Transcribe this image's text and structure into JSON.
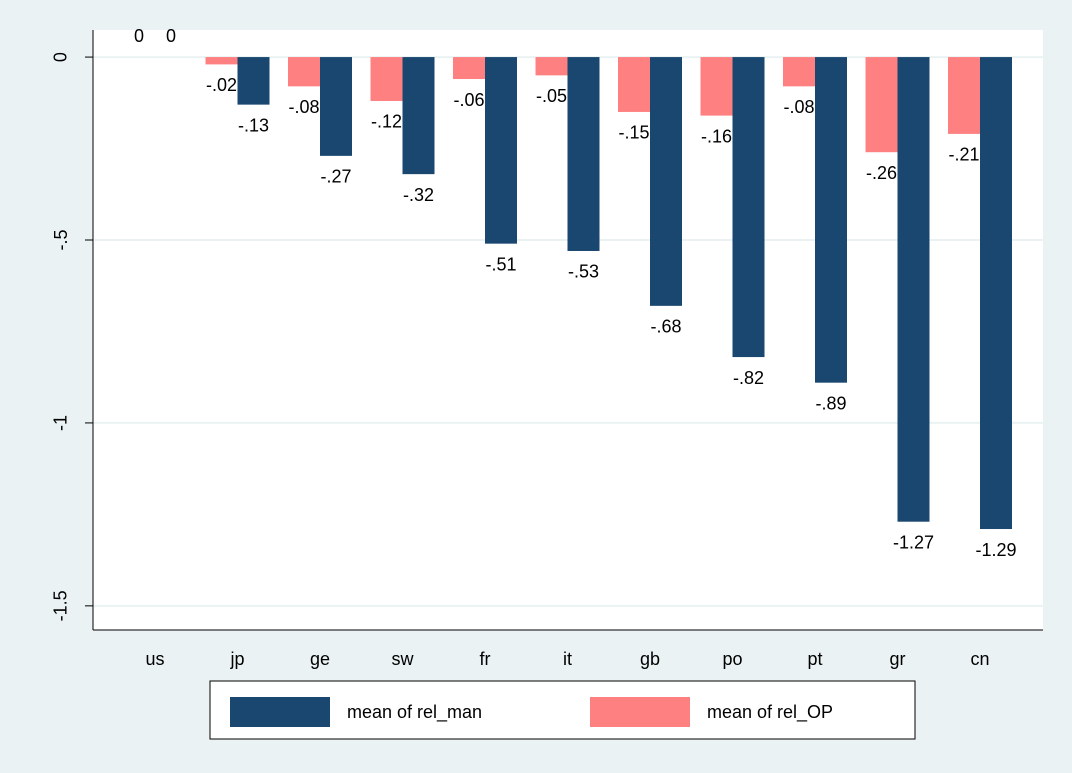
{
  "chart_data": {
    "type": "bar",
    "categories": [
      "us",
      "jp",
      "ge",
      "sw",
      "fr",
      "it",
      "gb",
      "po",
      "pt",
      "gr",
      "cn"
    ],
    "series": [
      {
        "name": "mean of rel_man",
        "color": "#1a476f",
        "values": [
          0,
          -0.13,
          -0.27,
          -0.32,
          -0.51,
          -0.53,
          -0.68,
          -0.82,
          -0.89,
          -1.27,
          -1.29
        ],
        "value_labels": [
          "0",
          "-.13",
          "-.27",
          "-.32",
          "-.51",
          "-.53",
          "-.68",
          "-.82",
          "-.89",
          "-1.27",
          "-1.29"
        ]
      },
      {
        "name": "mean of rel_OP",
        "color": "#ff8080",
        "values": [
          0,
          -0.02,
          -0.08,
          -0.12,
          -0.06,
          -0.05,
          -0.15,
          -0.16,
          -0.08,
          -0.26,
          -0.21
        ],
        "value_labels": [
          "0",
          "-.02",
          "-.08",
          "-.12",
          "-.06",
          "-.05",
          "-.15",
          "-.16",
          "-.08",
          "-.26",
          "-.21"
        ]
      }
    ],
    "ylim": [
      -1.566,
      0.074
    ],
    "yticks": [
      0,
      {
        "value": -0.5,
        "label": "-.5"
      },
      {
        "value": -1,
        "label": "-1"
      },
      {
        "value": -1.5,
        "label": "-1.5"
      }
    ],
    "grid": true,
    "legend": "bottom"
  }
}
